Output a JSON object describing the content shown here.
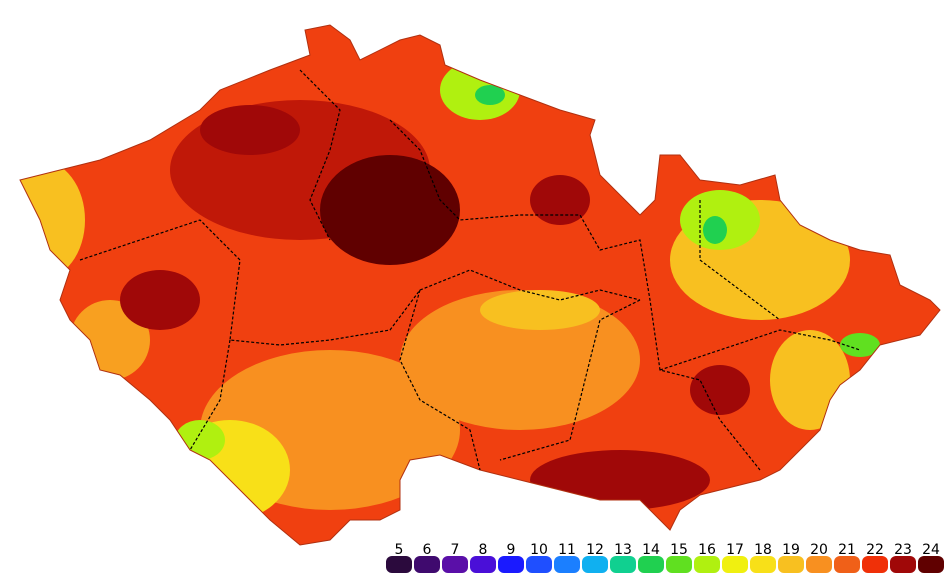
{
  "legend": {
    "items": [
      {
        "label": 5,
        "color": "#2b0a3d"
      },
      {
        "label": 6,
        "color": "#3f0a6e"
      },
      {
        "label": 7,
        "color": "#5a0fa8"
      },
      {
        "label": 8,
        "color": "#4a0fd8"
      },
      {
        "label": 9,
        "color": "#1a1aff"
      },
      {
        "label": 10,
        "color": "#1f4fff"
      },
      {
        "label": 11,
        "color": "#1b7fff"
      },
      {
        "label": 12,
        "color": "#10b0f0"
      },
      {
        "label": 13,
        "color": "#10d090"
      },
      {
        "label": 14,
        "color": "#20d050"
      },
      {
        "label": 15,
        "color": "#60e020"
      },
      {
        "label": 16,
        "color": "#b0f010"
      },
      {
        "label": 17,
        "color": "#f0f010"
      },
      {
        "label": 18,
        "color": "#f8e018"
      },
      {
        "label": 19,
        "color": "#f8c020"
      },
      {
        "label": 20,
        "color": "#f89020"
      },
      {
        "label": 21,
        "color": "#f06018"
      },
      {
        "label": 22,
        "color": "#f03008"
      },
      {
        "label": 23,
        "color": "#a00808"
      },
      {
        "label": 24,
        "color": "#600000"
      }
    ]
  }
}
